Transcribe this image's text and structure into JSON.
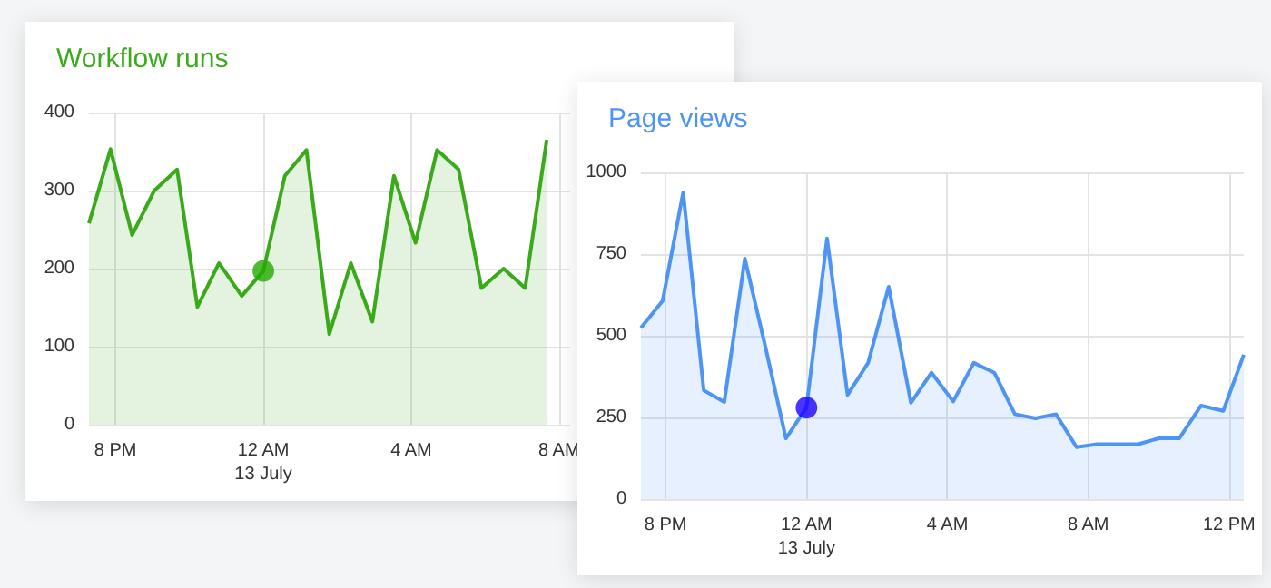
{
  "chart_data": [
    {
      "type": "area",
      "title": "Workflow runs",
      "xlim": [
        "--07-12T19:17",
        "--07-13T08:18"
      ],
      "xticks": [
        {
          "value": "--07-12T20:00",
          "label": "8 PM"
        },
        {
          "value": "--07-13T00:00",
          "label": "12 AM\n13 July"
        },
        {
          "value": "--07-13T04:00",
          "label": "4 AM"
        },
        {
          "value": "--07-13T08:00",
          "label": "8 AM"
        }
      ],
      "ylim": [
        0,
        400
      ],
      "yticks": [
        0,
        100,
        200,
        300,
        400
      ],
      "grid": true,
      "marker": "none",
      "series": [
        {
          "color": "#3aaa1a",
          "x": [
            "--07-12T19:17",
            "--07-12T19:52",
            "--07-12T20:27",
            "--07-12T21:03",
            "--07-12T21:40",
            "--07-12T22:13",
            "--07-12T22:48",
            "--07-12T23:25",
            "--07-13T00:00",
            "--07-13T00:35",
            "--07-13T01:10",
            "--07-13T01:47",
            "--07-13T02:22",
            "--07-13T02:57",
            "--07-13T03:32",
            "--07-13T04:07",
            "--07-13T04:42",
            "--07-13T05:17",
            "--07-13T05:54",
            "--07-13T06:30",
            "--07-13T07:05",
            "--07-13T07:40"
          ],
          "values": [
            258,
            353,
            243,
            300,
            327,
            151,
            207,
            165,
            197,
            319,
            352,
            116,
            207,
            132,
            319,
            233,
            352,
            327,
            175,
            200,
            175,
            365
          ]
        },
        {
          "type": "scatter",
          "marker": "circle",
          "color": "#22aa00",
          "x": [
            "--07-13T00:00"
          ],
          "values": [
            197
          ]
        }
      ]
    },
    {
      "type": "area",
      "title": "Page views",
      "xlim": [
        "--07-12T19:18",
        "--07-13T12:25"
      ],
      "xticks": [
        {
          "value": "--07-12T20:00",
          "label": "8 PM"
        },
        {
          "value": "--07-13T00:00",
          "label": "12 AM\n13 July"
        },
        {
          "value": "--07-13T04:00",
          "label": "4 AM"
        },
        {
          "value": "--07-13T08:00",
          "label": "8 AM"
        },
        {
          "value": "--07-13T12:00",
          "label": "12 PM"
        }
      ],
      "ylim": [
        0,
        1000
      ],
      "yticks": [
        0,
        250,
        500,
        750,
        1000
      ],
      "grid": true,
      "marker": "none",
      "series": [
        {
          "color": "#4d94f5",
          "x": [
            "--07-12T19:18",
            "--07-12T19:55",
            "--07-12T20:30",
            "--07-12T21:05",
            "--07-12T21:40",
            "--07-12T22:15",
            "--07-12T22:50",
            "--07-12T23:25",
            "--07-13T00:00",
            "--07-13T00:35",
            "--07-13T01:10",
            "--07-13T01:45",
            "--07-13T02:20",
            "--07-13T02:58",
            "--07-13T03:33",
            "--07-13T04:10",
            "--07-13T04:45",
            "--07-13T05:20",
            "--07-13T05:55",
            "--07-13T06:30",
            "--07-13T07:05",
            "--07-13T07:40",
            "--07-13T08:15",
            "--07-13T08:50",
            "--07-13T09:25",
            "--07-13T10:00",
            "--07-13T10:35",
            "--07-13T11:12",
            "--07-13T11:50",
            "--07-13T12:25"
          ],
          "values": [
            524,
            607,
            939,
            333,
            297,
            736,
            466,
            186,
            280,
            798,
            319,
            417,
            650,
            295,
            387,
            299,
            417,
            387,
            260,
            247,
            260,
            159,
            168,
            168,
            168,
            186,
            186,
            286,
            270,
            442
          ]
        },
        {
          "type": "scatter",
          "marker": "circle",
          "color": "#1a00ff",
          "x": [
            "--07-13T00:00"
          ],
          "values": [
            280
          ]
        }
      ]
    }
  ]
}
